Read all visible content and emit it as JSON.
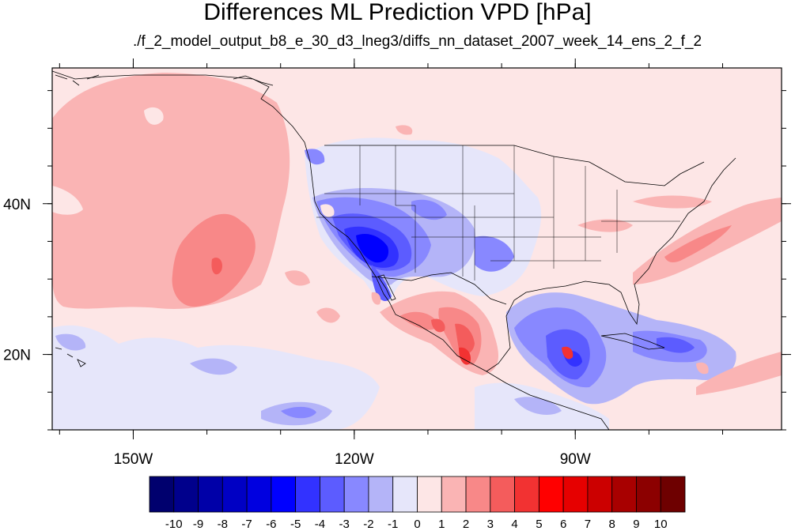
{
  "title": "Differences ML Prediction VPD [hPa]",
  "subtitle": "./f_2_model_output_b8_e_30_d3_lneg3/diffs_nn_dataset_2007_week_14_ens_2_f_2",
  "map": {
    "lon_range": [
      -161,
      -62
    ],
    "lat_range": [
      10,
      58
    ],
    "lon_ticks": [
      {
        "value": -150,
        "label": "150W"
      },
      {
        "value": -120,
        "label": "120W"
      },
      {
        "value": -90,
        "label": "90W"
      }
    ],
    "lat_ticks": [
      {
        "value": 40,
        "label": "40N"
      },
      {
        "value": 20,
        "label": "20N"
      }
    ],
    "background_color": "#fde6e6"
  },
  "colorbar": {
    "labels": [
      "-10",
      "-9",
      "-8",
      "-7",
      "-6",
      "-5",
      "-4",
      "-3",
      "-2",
      "-1",
      "0",
      "1",
      "2",
      "3",
      "4",
      "5",
      "6",
      "7",
      "8",
      "9",
      "10"
    ],
    "colors": [
      "#00006e",
      "#00008c",
      "#0000a8",
      "#0000c4",
      "#0000e0",
      "#0000ff",
      "#3232ff",
      "#5c5cff",
      "#8888ff",
      "#b4b4f8",
      "#e6e6fa",
      "#fde6e6",
      "#fab4b4",
      "#f88888",
      "#f45c5c",
      "#f23232",
      "#ff0000",
      "#e60000",
      "#cc0000",
      "#a80000",
      "#8c0000",
      "#6e0000"
    ]
  }
}
